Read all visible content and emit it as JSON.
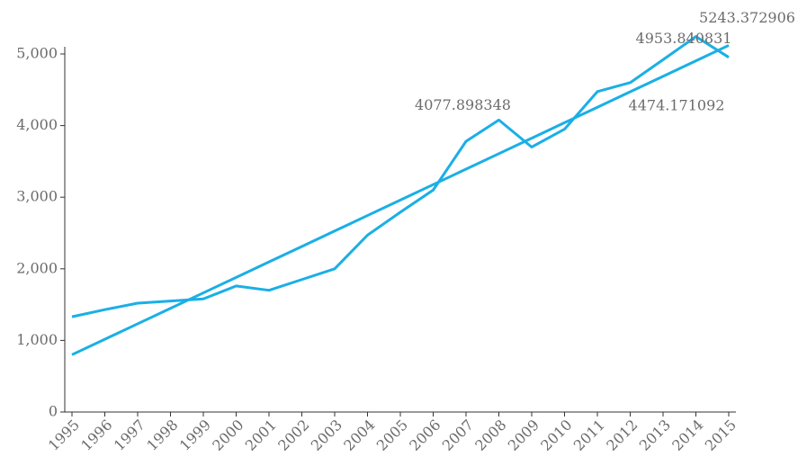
{
  "chart_data": {
    "type": "line",
    "categories": [
      "1995",
      "1996",
      "1997",
      "1998",
      "1999",
      "2000",
      "2001",
      "2002",
      "2003",
      "2004",
      "2005",
      "2006",
      "2007",
      "2008",
      "2009",
      "2010",
      "2011",
      "2012",
      "2013",
      "2014",
      "2015"
    ],
    "series": [
      {
        "color": "#1aafe6",
        "values": [
          1330,
          1430,
          1520,
          1550,
          1580,
          1760,
          1700,
          1850,
          2000,
          2470,
          2790,
          3100,
          3780,
          4077.898348,
          3700,
          3950,
          4474.171092,
          4600,
          4920,
          5243.372906,
          4953.840831
        ]
      },
      {
        "color": "#1aafe6",
        "values": [
          800,
          1016,
          1232,
          1448,
          1664,
          1880,
          2096,
          2312,
          2528,
          2744,
          2960,
          3176,
          3392,
          3608,
          3824,
          4040,
          4256,
          4472,
          4688,
          4904,
          5120
        ]
      }
    ],
    "annotations": [
      {
        "category": "2008",
        "y": 4077.898348
      },
      {
        "category": "2011",
        "y": 4474.171092
      },
      {
        "category": "2015",
        "y": 4953.840831
      },
      {
        "category": "2014",
        "y": 5243.372906
      }
    ],
    "ylim": [
      0,
      5500
    ],
    "yticks": [
      0,
      {
        "value": 1000,
        "label": "1,000"
      },
      {
        "value": 2000,
        "label": "2,000"
      },
      {
        "value": 3000,
        "label": "3,000"
      },
      {
        "value": 4000,
        "label": "4,000"
      },
      {
        "value": 5000,
        "label": "5,000"
      }
    ]
  }
}
